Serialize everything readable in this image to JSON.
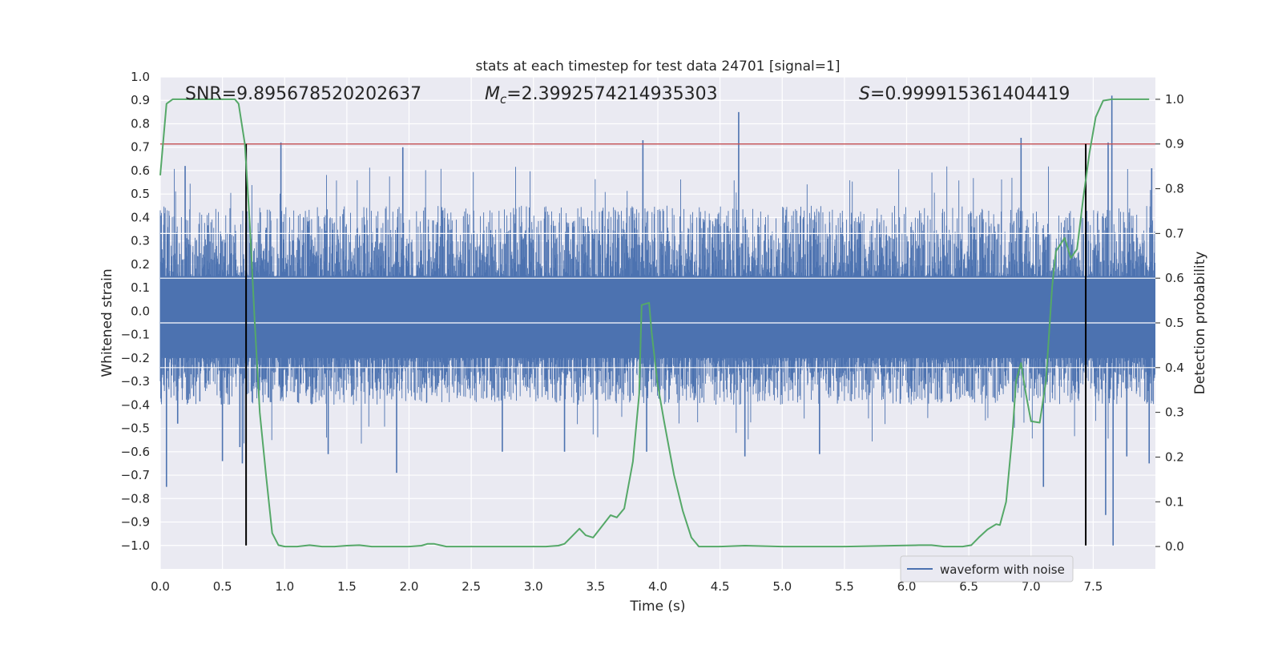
{
  "chart_data": {
    "type": "line",
    "title": "stats at each timestep for test data 24701 [signal=1]",
    "xlabel": "Time (s)",
    "ylabel_left": "Whitened strain",
    "ylabel_right": "Detection probability",
    "xlim": [
      0.0,
      8.0
    ],
    "ylim_left": [
      -1.1,
      1.0
    ],
    "ylim_right": [
      -0.05,
      1.05
    ],
    "x_ticks": [
      0.0,
      0.5,
      1.0,
      1.5,
      2.0,
      2.5,
      3.0,
      3.5,
      4.0,
      4.5,
      5.0,
      5.5,
      6.0,
      6.5,
      7.0,
      7.5
    ],
    "x_tick_labels": [
      "0.0",
      "0.5",
      "1.0",
      "1.5",
      "2.0",
      "2.5",
      "3.0",
      "3.5",
      "4.0",
      "4.5",
      "5.0",
      "5.5",
      "6.0",
      "6.5",
      "7.0",
      "7.5"
    ],
    "y_left_ticks": [
      -1.0,
      -0.9,
      -0.8,
      -0.7,
      -0.6,
      -0.5,
      -0.4,
      -0.3,
      -0.2,
      -0.1,
      0.0,
      0.1,
      0.2,
      0.3,
      0.4,
      0.5,
      0.6,
      0.7,
      0.8,
      0.9,
      1.0
    ],
    "y_left_tick_labels": [
      "−1.0",
      "−0.9",
      "−0.8",
      "−0.7",
      "−0.6",
      "−0.5",
      "−0.4",
      "−0.3",
      "−0.2",
      "−0.1",
      "0.0",
      "0.1",
      "0.2",
      "0.3",
      "0.4",
      "0.5",
      "0.6",
      "0.7",
      "0.8",
      "0.9",
      "1.0"
    ],
    "y_right_ticks": [
      0.0,
      0.1,
      0.2,
      0.3,
      0.4,
      0.5,
      0.6,
      0.7,
      0.8,
      0.9,
      1.0
    ],
    "y_right_tick_labels": [
      "0.0",
      "0.1",
      "0.2",
      "0.3",
      "0.4",
      "0.5",
      "0.6",
      "0.7",
      "0.8",
      "0.9",
      "1.0"
    ],
    "grid": true,
    "annotations": {
      "snr": "SNR=9.895678520202637",
      "mc_symbol": "M",
      "mc_subscript": "c",
      "mc_value": "=2.3992574214935303",
      "s_symbol": "S",
      "s_value": "=0.999915361404419"
    },
    "legend": {
      "placement": "lower-right",
      "entries": [
        "waveform with noise"
      ]
    },
    "series": [
      {
        "name": "waveform with noise",
        "axis": "left",
        "color": "#4c72b0",
        "style": "dense noise",
        "band_typical": [
          -0.4,
          0.45
        ],
        "peaks": [
          {
            "x": 0.05,
            "y": -0.75
          },
          {
            "x": 0.14,
            "y": -0.48
          },
          {
            "x": 0.2,
            "y": 0.62
          },
          {
            "x": 0.5,
            "y": -0.64
          },
          {
            "x": 0.64,
            "y": -0.58
          },
          {
            "x": 0.66,
            "y": -0.65
          },
          {
            "x": 0.97,
            "y": 0.72
          },
          {
            "x": 1.35,
            "y": -0.61
          },
          {
            "x": 1.9,
            "y": -0.69
          },
          {
            "x": 1.95,
            "y": 0.7
          },
          {
            "x": 2.75,
            "y": -0.6
          },
          {
            "x": 3.25,
            "y": -0.6
          },
          {
            "x": 3.88,
            "y": 0.73
          },
          {
            "x": 3.91,
            "y": -0.6
          },
          {
            "x": 4.65,
            "y": 0.85
          },
          {
            "x": 4.7,
            "y": -0.62
          },
          {
            "x": 5.3,
            "y": -0.61
          },
          {
            "x": 6.92,
            "y": 0.74
          },
          {
            "x": 7.1,
            "y": -0.75
          },
          {
            "x": 7.6,
            "y": -0.87
          },
          {
            "x": 7.62,
            "y": 0.72
          },
          {
            "x": 7.65,
            "y": 0.92
          },
          {
            "x": 7.66,
            "y": -1.0
          },
          {
            "x": 7.77,
            "y": -0.62
          },
          {
            "x": 7.95,
            "y": -0.65
          },
          {
            "x": 7.97,
            "y": 0.61
          }
        ]
      },
      {
        "name": "",
        "axis": "right",
        "color": "#55a868",
        "points": [
          [
            0.0,
            0.83
          ],
          [
            0.05,
            0.99
          ],
          [
            0.1,
            1.0
          ],
          [
            0.2,
            1.0
          ],
          [
            0.3,
            1.0
          ],
          [
            0.4,
            1.0
          ],
          [
            0.5,
            1.0
          ],
          [
            0.6,
            1.0
          ],
          [
            0.63,
            0.99
          ],
          [
            0.68,
            0.9
          ],
          [
            0.72,
            0.72
          ],
          [
            0.76,
            0.5
          ],
          [
            0.8,
            0.3
          ],
          [
            0.85,
            0.16
          ],
          [
            0.9,
            0.03
          ],
          [
            0.95,
            0.003
          ],
          [
            1.0,
            0.0
          ],
          [
            1.1,
            0.0
          ],
          [
            1.2,
            0.003
          ],
          [
            1.3,
            0.0
          ],
          [
            1.4,
            0.0
          ],
          [
            1.5,
            0.002
          ],
          [
            1.6,
            0.003
          ],
          [
            1.7,
            0.0
          ],
          [
            1.8,
            0.0
          ],
          [
            1.9,
            0.0
          ],
          [
            2.0,
            0.0
          ],
          [
            2.1,
            0.002
          ],
          [
            2.15,
            0.006
          ],
          [
            2.2,
            0.006
          ],
          [
            2.3,
            0.0
          ],
          [
            2.4,
            0.0
          ],
          [
            2.5,
            0.0
          ],
          [
            2.6,
            0.0
          ],
          [
            2.7,
            0.0
          ],
          [
            2.8,
            0.0
          ],
          [
            2.9,
            0.0
          ],
          [
            3.0,
            0.0
          ],
          [
            3.1,
            0.0
          ],
          [
            3.2,
            0.002
          ],
          [
            3.25,
            0.006
          ],
          [
            3.3,
            0.02
          ],
          [
            3.37,
            0.04
          ],
          [
            3.42,
            0.025
          ],
          [
            3.48,
            0.02
          ],
          [
            3.55,
            0.045
          ],
          [
            3.62,
            0.07
          ],
          [
            3.67,
            0.065
          ],
          [
            3.73,
            0.085
          ],
          [
            3.8,
            0.19
          ],
          [
            3.85,
            0.34
          ],
          [
            3.87,
            0.54
          ],
          [
            3.93,
            0.545
          ],
          [
            3.95,
            0.48
          ],
          [
            4.0,
            0.36
          ],
          [
            4.05,
            0.28
          ],
          [
            4.13,
            0.16
          ],
          [
            4.2,
            0.08
          ],
          [
            4.27,
            0.02
          ],
          [
            4.33,
            0.0
          ],
          [
            4.5,
            0.0
          ],
          [
            4.7,
            0.002
          ],
          [
            5.0,
            0.0
          ],
          [
            5.5,
            0.0
          ],
          [
            5.9,
            0.002
          ],
          [
            6.1,
            0.003
          ],
          [
            6.2,
            0.003
          ],
          [
            6.3,
            0.0
          ],
          [
            6.45,
            0.0
          ],
          [
            6.52,
            0.003
          ],
          [
            6.58,
            0.02
          ],
          [
            6.65,
            0.038
          ],
          [
            6.72,
            0.05
          ],
          [
            6.75,
            0.048
          ],
          [
            6.8,
            0.1
          ],
          [
            6.85,
            0.25
          ],
          [
            6.88,
            0.37
          ],
          [
            6.92,
            0.41
          ],
          [
            6.96,
            0.34
          ],
          [
            7.0,
            0.28
          ],
          [
            7.07,
            0.277
          ],
          [
            7.12,
            0.37
          ],
          [
            7.17,
            0.58
          ],
          [
            7.2,
            0.66
          ],
          [
            7.27,
            0.69
          ],
          [
            7.32,
            0.645
          ],
          [
            7.37,
            0.665
          ],
          [
            7.42,
            0.78
          ],
          [
            7.47,
            0.88
          ],
          [
            7.52,
            0.96
          ],
          [
            7.58,
            0.997
          ],
          [
            7.65,
            1.0
          ],
          [
            7.8,
            1.0
          ],
          [
            7.95,
            1.0
          ]
        ]
      }
    ],
    "reference_lines": [
      {
        "type": "horizontal",
        "axis": "right",
        "y": 0.9,
        "color": "#c44e52"
      },
      {
        "type": "vertical",
        "x": 0.69,
        "ymin": -1.0,
        "ymax": 0.9,
        "color": "#000000"
      },
      {
        "type": "vertical",
        "x": 7.44,
        "ymin": -1.0,
        "ymax": 0.9,
        "color": "#000000"
      }
    ],
    "colors": {
      "background": "#eaeaf2",
      "grid": "#ffffff",
      "noise": "#4c72b0",
      "probability": "#55a868",
      "threshold": "#c44e52",
      "markers": "#000000"
    }
  }
}
